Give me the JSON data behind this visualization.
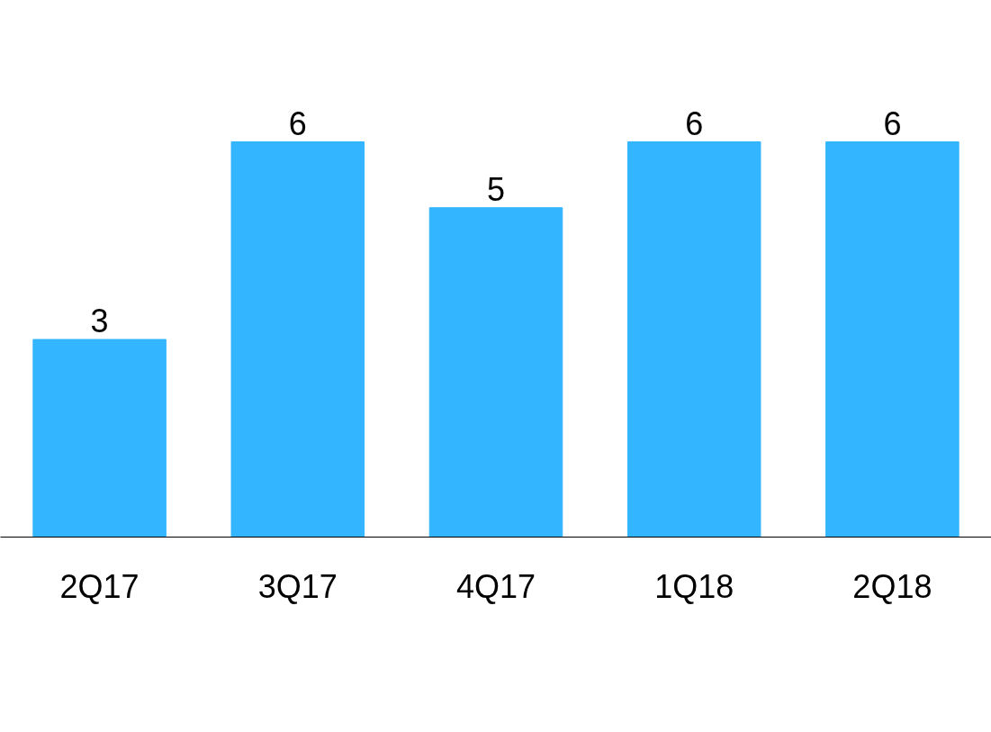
{
  "chart_data": {
    "type": "bar",
    "categories": [
      "2Q17",
      "3Q17",
      "4Q17",
      "1Q18",
      "2Q18"
    ],
    "values": [
      3,
      6,
      5,
      6,
      6
    ],
    "color": "#33b5ff",
    "data_labels": true
  }
}
